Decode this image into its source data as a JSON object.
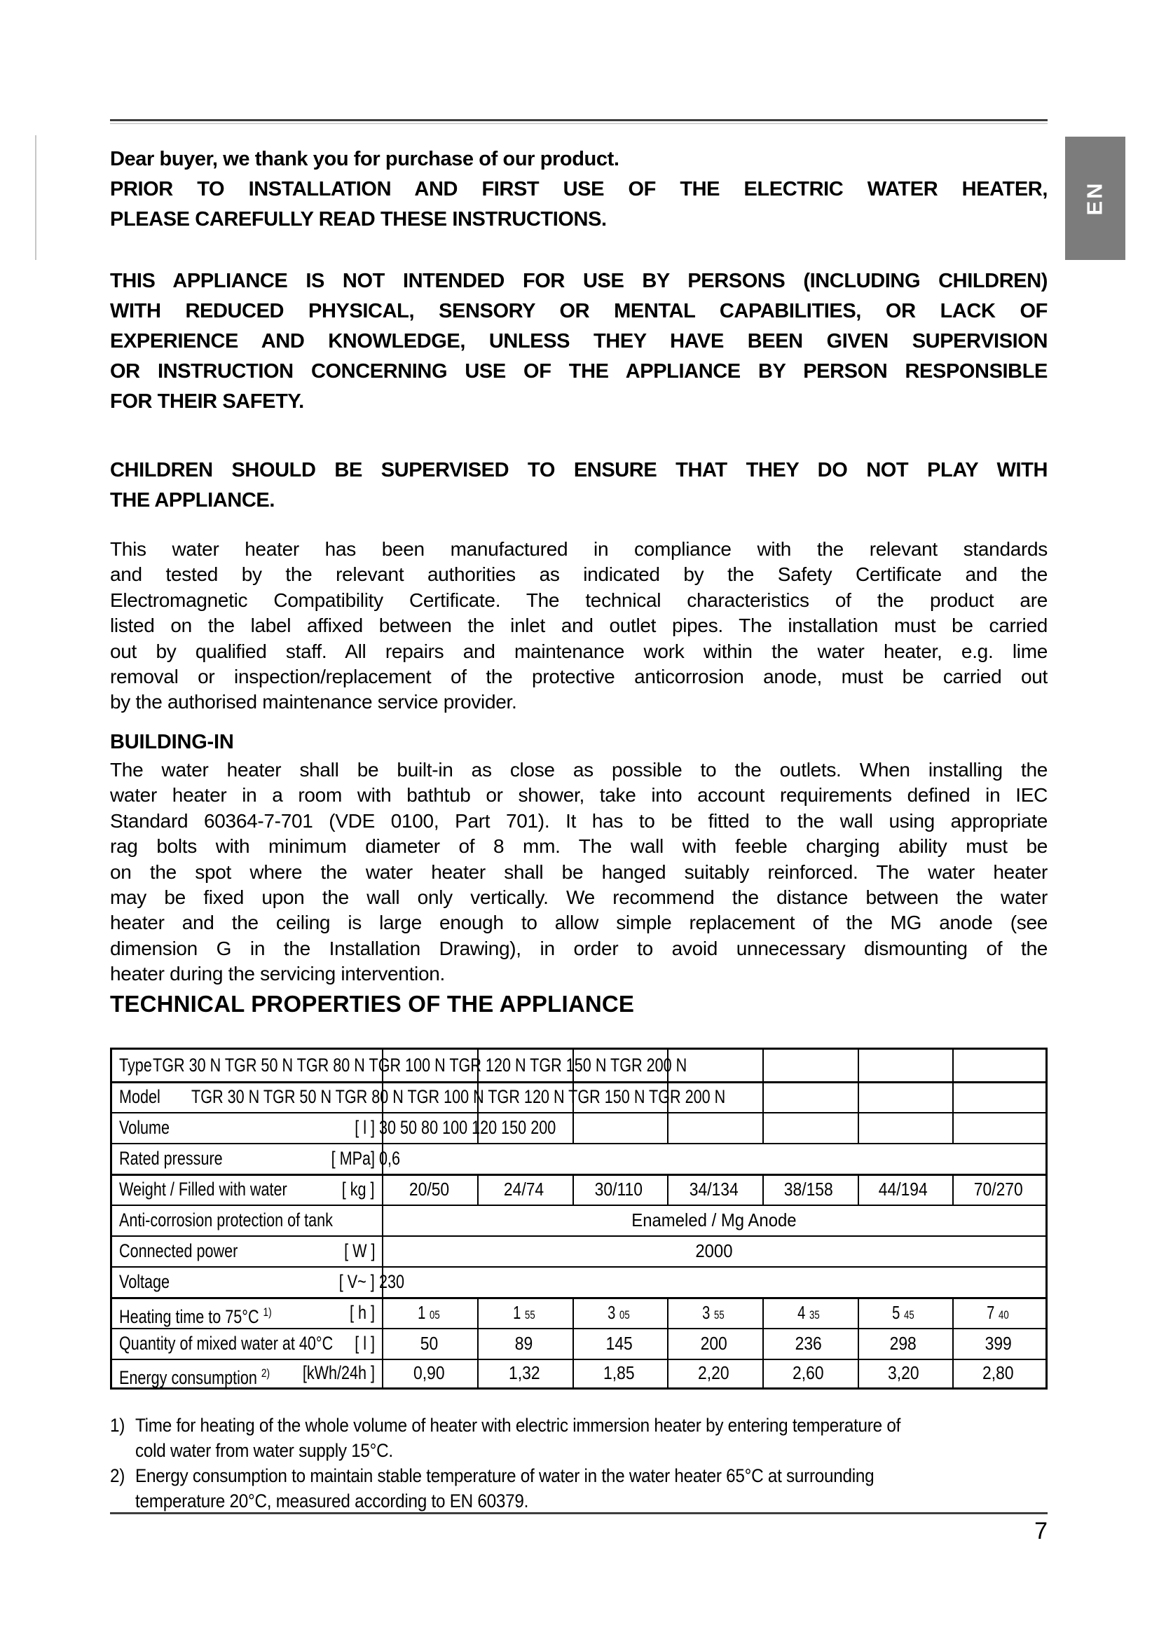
{
  "lang_tab": "EN",
  "page_number": "7",
  "intro": {
    "p1_lines": [
      "Dear buyer, we thank you for purchase of our product."
    ],
    "p2_lines": [
      "PRIOR TO INSTALLATION AND FIRST USE OF THE ELECTRIC WATER HEATER,",
      "PLEASE CAREFULLY READ THESE INSTRUCTIONS."
    ],
    "p3_lines": [
      "THIS APPLIANCE IS NOT INTENDED FOR USE BY PERSONS (INCLUDING CHILDREN)",
      "WITH REDUCED PHYSICAL, SENSORY OR MENTAL CAPABILITIES, OR LACK OF",
      "EXPERIENCE AND KNOWLEDGE, UNLESS THEY HAVE BEEN GIVEN SUPERVISION",
      "OR INSTRUCTION CONCERNING USE OF THE APPLIANCE BY PERSON RESPONSIBLE",
      "FOR THEIR SAFETY."
    ],
    "p4_lines": [
      "CHILDREN SHOULD BE SUPERVISED TO ENSURE THAT THEY DO NOT PLAY WITH",
      "THE APPLIANCE."
    ],
    "p5_lines": [
      "This water heater has been manufactured in compliance with the relevant standards",
      "and tested by the relevant authorities as indicated by the Safety Certificate and the",
      "Electromagnetic Compatibility Certificate. The technical characteristics of the product are",
      "listed on the label affixed between the inlet and outlet pipes. The installation must be carried",
      "out by qualified staff. All repairs and maintenance work within the water heater, e.g. lime",
      "removal or inspection/replacement of the protective anticorrosion anode, must be carried out",
      "by the authorised maintenance service provider."
    ]
  },
  "building_in": {
    "heading": "BUILDING-IN",
    "body_lines": [
      "The water heater shall be built-in as close as possible to the outlets. When installing the",
      "water heater in a room with bathtub or shower, take into account requirements defined in IEC",
      "Standard 60364-7-701 (VDE 0100, Part 701). It has to be fitted to the wall using appropriate",
      "rag bolts with minimum diameter of 8 mm. The wall with feeble charging ability must be",
      "on the spot where the water heater shall be hanged suitably reinforced. The water heater",
      "may be fixed upon the wall only vertically. We recommend the distance between the water",
      "heater and the ceiling is large enough to allow simple replacement of the MG anode (see",
      "dimension G in the Installation Drawing), in order to avoid unnecessary dismounting of the",
      "heater during the servicing intervention."
    ]
  },
  "technical": {
    "heading": "TECHNICAL PROPERTIES OF THE APPLIANCE"
  },
  "table": {
    "rows": [
      {
        "label": "Type",
        "models": "TGR 30 N TGR 50 N TGR 80 N TGR 100 N TGR 120 N TGR 150 N TGR 200 N"
      },
      {
        "label": "Model",
        "models": "TGR 30 N TGR 50 N TGR 80 N TGR 100 N TGR 120 N TGR 150 N TGR 200 N"
      },
      {
        "label": "Volume",
        "unit": "[ l ]",
        "inline_value": "30 50 80 100 120 150 200"
      },
      {
        "label": "Rated pressure",
        "unit": "[ MPa]",
        "inline_value": "0,6"
      },
      {
        "label": "Weight / Filled with water",
        "unit": "[ kg ]",
        "values": [
          "20/50",
          "24/74",
          "30/110",
          "34/134",
          "38/158",
          "44/194",
          "70/270"
        ]
      },
      {
        "label": "Anti-corrosion protection of tank",
        "merged_value": "Enameled / Mg Anode"
      },
      {
        "label": "Connected power",
        "unit": "[ W ]",
        "merged_value": "2000"
      },
      {
        "label": "Voltage",
        "unit": "[ V~ ]",
        "inline_value": "230"
      },
      {
        "label": "Heating time to 75°C ",
        "label_sup": "1)",
        "unit": "[ h ]",
        "values_sup": [
          {
            "m": "1",
            "s": "05"
          },
          {
            "m": "1",
            "s": "55"
          },
          {
            "m": "3",
            "s": "05"
          },
          {
            "m": "3",
            "s": "55"
          },
          {
            "m": "4",
            "s": "35"
          },
          {
            "m": "5",
            "s": "45"
          },
          {
            "m": "7",
            "s": "40"
          }
        ]
      },
      {
        "label": "Quantity of mixed water at 40°C",
        "unit": "[ l ]",
        "values": [
          "50",
          "89",
          "145",
          "200",
          "236",
          "298",
          "399"
        ]
      },
      {
        "label": "Energy consumption ",
        "label_sup": "2)",
        "unit": "[kWh/24h ]",
        "values": [
          "0,90",
          "1,32",
          "1,85",
          "2,20",
          "2,60",
          "3,20",
          "2,80"
        ]
      }
    ]
  },
  "footnotes": [
    {
      "marker": "1)",
      "lines": [
        "Time for heating of the whole volume of heater with electric immersion heater by entering temperature of",
        "cold water from water supply 15°C."
      ]
    },
    {
      "marker": "2)",
      "lines": [
        "Energy consumption to maintain stable temperature of water in the water heater 65°C at surrounding",
        "temperature 20°C, measured according to EN 60379."
      ]
    }
  ]
}
